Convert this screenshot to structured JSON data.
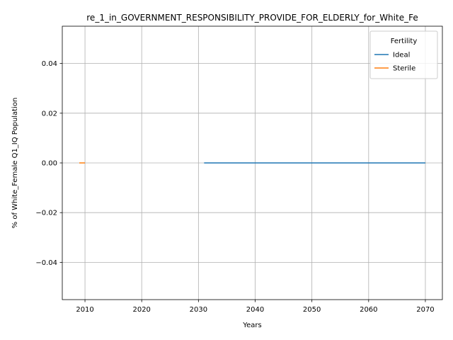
{
  "chart_data": {
    "type": "line",
    "title": "re_1_in_GOVERNMENT_RESPONSIBILITY_PROVIDE_FOR_ELDERLY_for_White_Fe",
    "xlabel": "Years",
    "ylabel": "% of White_Female Q1_IQ Population",
    "xlim": [
      2006,
      2073
    ],
    "ylim": [
      -0.055,
      0.055
    ],
    "xticks": [
      2010,
      2020,
      2030,
      2040,
      2050,
      2060,
      2070
    ],
    "yticks": [
      -0.04,
      -0.02,
      0.0,
      0.02,
      0.04
    ],
    "ytick_labels": [
      "−0.04",
      "−0.02",
      "0.00",
      "0.02",
      "0.04"
    ],
    "grid": true,
    "legend": {
      "title": "Fertility",
      "placement": "top-right"
    },
    "series": [
      {
        "name": "Ideal",
        "color": "#1f77b4",
        "x": [
          2031,
          2035,
          2040,
          2045,
          2050,
          2055,
          2060,
          2065,
          2070
        ],
        "y": [
          0,
          0,
          0,
          0,
          0,
          0,
          0,
          0,
          0
        ]
      },
      {
        "name": "Sterile",
        "color": "#ff7f0e",
        "x": [
          2009,
          2010
        ],
        "y": [
          0,
          0
        ]
      }
    ]
  }
}
